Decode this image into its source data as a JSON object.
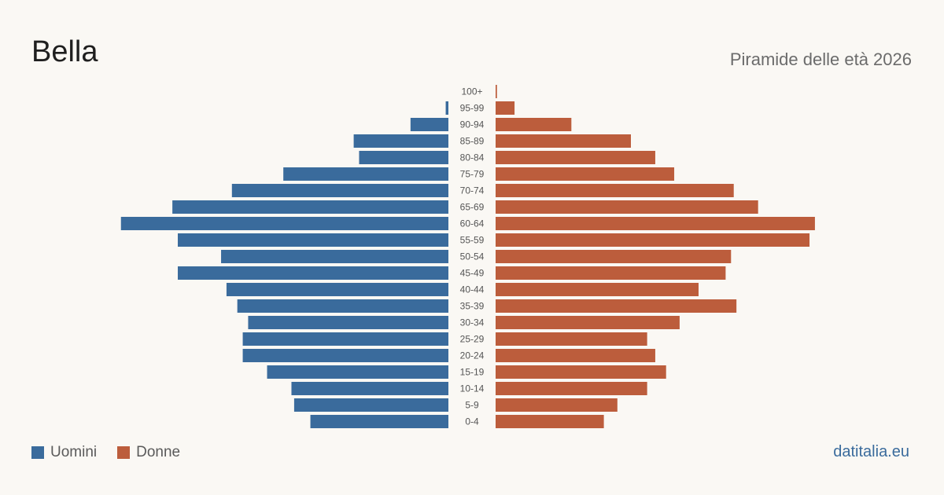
{
  "header": {
    "title": "Bella",
    "subtitle": "Piramide delle età 2026"
  },
  "legend": {
    "men_label": "Uomini",
    "women_label": "Donne"
  },
  "brand": "datitalia.eu",
  "colors": {
    "men": "#3a6b9c",
    "women": "#bc5d3c"
  },
  "chart_data": {
    "type": "bar",
    "orientation": "horizontal-pyramid",
    "categories": [
      "100+",
      "95-99",
      "90-94",
      "85-89",
      "80-84",
      "75-79",
      "70-74",
      "65-69",
      "60-64",
      "55-59",
      "50-54",
      "45-49",
      "40-44",
      "35-39",
      "30-34",
      "25-29",
      "20-24",
      "15-19",
      "10-14",
      "5-9",
      "0-4"
    ],
    "series": [
      {
        "name": "Uomini",
        "side": "left",
        "values": [
          0,
          1,
          14,
          35,
          33,
          61,
          80,
          102,
          121,
          100,
          84,
          100,
          82,
          78,
          74,
          76,
          76,
          67,
          58,
          57,
          51
        ]
      },
      {
        "name": "Donne",
        "side": "right",
        "values": [
          0.5,
          7,
          28,
          50,
          59,
          66,
          88,
          97,
          118,
          116,
          87,
          85,
          75,
          89,
          68,
          56,
          59,
          63,
          56,
          45,
          40
        ]
      }
    ],
    "xlim": [
      0,
      125
    ],
    "grid": false,
    "legend_position": "bottom-left"
  }
}
